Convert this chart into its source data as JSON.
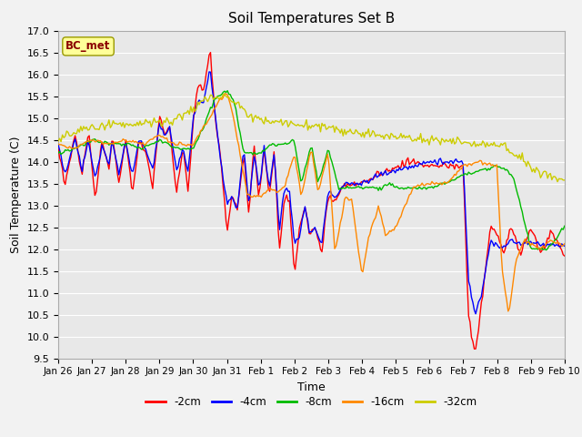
{
  "title": "Soil Temperatures Set B",
  "xlabel": "Time",
  "ylabel": "Soil Temperature (C)",
  "annotation": "BC_met",
  "ylim": [
    9.5,
    17.0
  ],
  "yticks": [
    9.5,
    10.0,
    10.5,
    11.0,
    11.5,
    12.0,
    12.5,
    13.0,
    13.5,
    14.0,
    14.5,
    15.0,
    15.5,
    16.0,
    16.5,
    17.0
  ],
  "xtick_labels": [
    "Jan 26",
    "Jan 27",
    "Jan 28",
    "Jan 29",
    "Jan 30",
    "Jan 31",
    "Feb 1",
    "Feb 2",
    "Feb 3",
    "Feb 4",
    "Feb 5",
    "Feb 6",
    "Feb 7",
    "Feb 8",
    "Feb 9",
    "Feb 10"
  ],
  "series_labels": [
    "-2cm",
    "-4cm",
    "-8cm",
    "-16cm",
    "-32cm"
  ],
  "series_colors": [
    "#ff0000",
    "#0000ff",
    "#00bb00",
    "#ff8800",
    "#cccc00"
  ],
  "line_width": 1.0,
  "plot_bg_color": "#e8e8e8",
  "grid_color": "#ffffff",
  "n_points": 360
}
